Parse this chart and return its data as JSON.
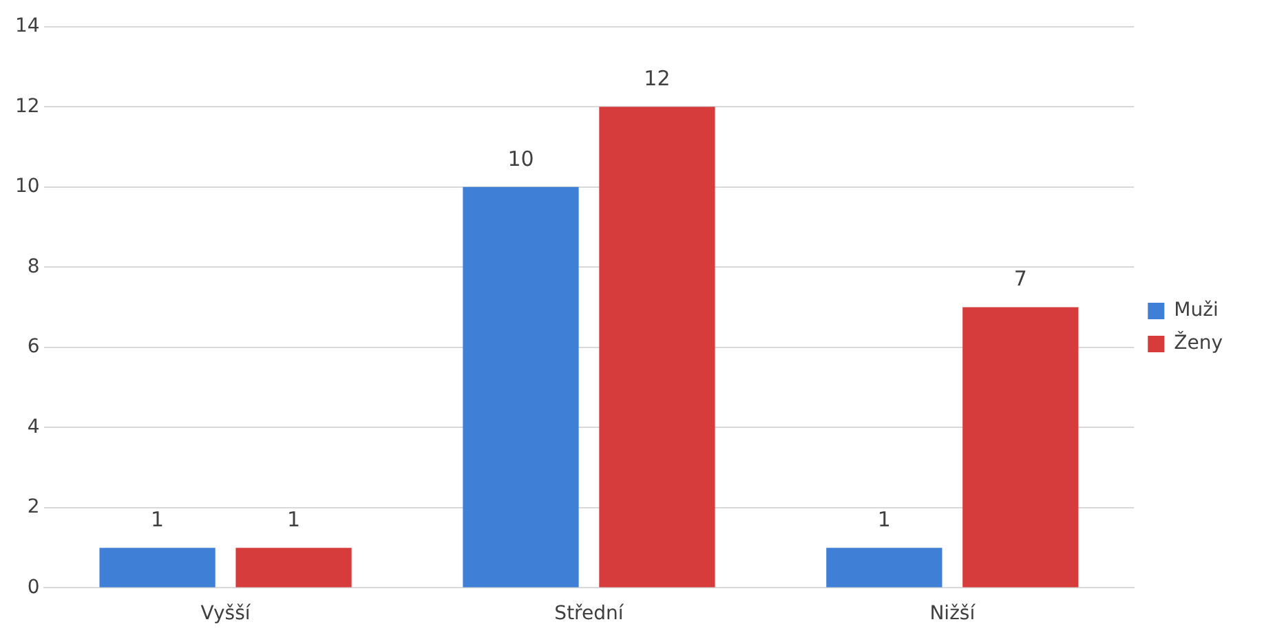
{
  "chart_data": {
    "type": "bar",
    "categories": [
      "Vyšší",
      "Střední",
      "Nižší"
    ],
    "series": [
      {
        "name": "Muži",
        "color": "#3f7fd6",
        "values": [
          1,
          10,
          1
        ]
      },
      {
        "name": "Ženy",
        "color": "#d63c3c",
        "values": [
          1,
          12,
          7
        ]
      }
    ],
    "ylim": [
      0,
      14
    ],
    "yticks": [
      0,
      2,
      4,
      6,
      8,
      10,
      12,
      14
    ],
    "grid": "y",
    "legend": "right",
    "data_labels": true
  }
}
